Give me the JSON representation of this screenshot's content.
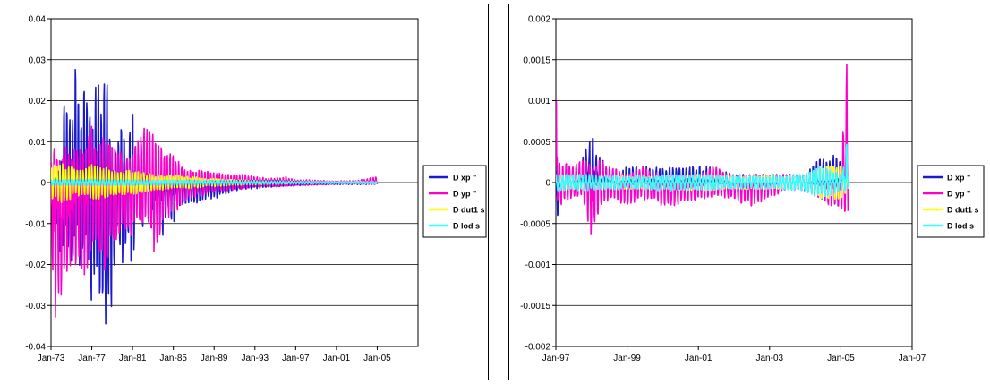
{
  "chart_data": [
    {
      "type": "line",
      "x_axis": "date",
      "x_ticks": [
        "Jan-73",
        "Jan-77",
        "Jan-81",
        "Jan-85",
        "Jan-89",
        "Jan-93",
        "Jan-97",
        "Jan-01",
        "Jan-05"
      ],
      "y_ticks": [
        "0.04",
        "0.03",
        "0.02",
        "0.01",
        "0",
        "-0.01",
        "-0.02",
        "-0.03",
        "-0.04"
      ],
      "ylim": [
        -0.04,
        0.04
      ],
      "xlim": [
        "1973-01-01",
        "2009-01-01"
      ],
      "grid": "horizontal",
      "legend_position": "right",
      "series": [
        {
          "name": "D xp \"",
          "color": "#1a1acc",
          "x": [
            "1973-06-01",
            "1974-01-01",
            "1974-06-01",
            "1975-01-01",
            "1975-06-01",
            "1976-01-01",
            "1976-06-01",
            "1977-01-01",
            "1977-06-01",
            "1978-01-01",
            "1978-06-01",
            "1979-01-01",
            "1979-06-01",
            "1980-01-01",
            "1980-06-01",
            "1981-01-01",
            "1981-06-01",
            "1982-01-01",
            "1982-06-01",
            "1983-01-01",
            "1983-06-01",
            "1984-01-01",
            "1984-06-01",
            "1985-01-01",
            "1985-06-01",
            "1986-01-01",
            "1987-01-01",
            "1988-01-01",
            "1989-01-01",
            "1990-01-01",
            "1991-01-01",
            "1993-01-01",
            "1995-01-01",
            "1997-01-01",
            "1999-01-01",
            "2001-01-01",
            "2003-01-01",
            "2005-01-01"
          ],
          "max": [
            0.001,
            0.005,
            0.029,
            0.012,
            0.029,
            0.013,
            0.03,
            0.012,
            0.03,
            0.016,
            0.032,
            0.003,
            0.009,
            0.016,
            0.007,
            0.018,
            0.004,
            0.015,
            0.01,
            0.001,
            0.004,
            -0.001,
            0.0,
            0.001,
            0.0015,
            0.001,
            0.001,
            0.0005,
            0.0005,
            0.0005,
            0.0005,
            0.0005,
            0.0005,
            0.0003,
            0.0002,
            0.0002,
            0.0002,
            0.0003
          ],
          "min": [
            -0.012,
            -0.019,
            -0.01,
            -0.026,
            -0.012,
            -0.026,
            -0.013,
            -0.032,
            -0.018,
            -0.04,
            -0.035,
            -0.032,
            -0.012,
            -0.022,
            -0.012,
            -0.024,
            -0.005,
            -0.012,
            -0.005,
            -0.018,
            -0.01,
            -0.013,
            -0.008,
            -0.011,
            -0.006,
            -0.006,
            -0.006,
            -0.004,
            -0.004,
            -0.003,
            -0.002,
            -0.0015,
            -0.001,
            -0.0008,
            -0.0006,
            -0.0005,
            -0.0005,
            -0.0005
          ]
        },
        {
          "name": "D yp \"",
          "color": "#ff00cc",
          "x": [
            "1973-01-01",
            "1973-06-01",
            "1974-01-01",
            "1974-06-01",
            "1975-01-01",
            "1975-06-01",
            "1976-01-01",
            "1976-06-01",
            "1977-01-01",
            "1977-06-01",
            "1978-01-01",
            "1978-06-01",
            "1979-01-01",
            "1979-06-01",
            "1980-01-01",
            "1980-06-01",
            "1981-01-01",
            "1981-06-01",
            "1982-01-01",
            "1982-06-01",
            "1983-01-01",
            "1983-06-01",
            "1984-01-01",
            "1985-01-01",
            "1986-01-01",
            "1987-01-01",
            "1988-01-01",
            "1989-01-01",
            "1990-01-01",
            "1991-01-01",
            "1992-01-01",
            "1993-01-01",
            "1995-01-01",
            "1996-01-01",
            "1997-01-01",
            "1999-01-01",
            "2001-01-01",
            "2003-01-01",
            "2005-01-01"
          ],
          "max": [
            0.006,
            0.009,
            0.006,
            0.009,
            0.007,
            0.009,
            0.008,
            0.009,
            0.014,
            0.007,
            0.012,
            0.014,
            0.009,
            0.009,
            0.007,
            0.006,
            0.007,
            0.011,
            0.014,
            0.015,
            0.012,
            0.01,
            0.008,
            0.007,
            0.004,
            0.003,
            0.003,
            0.0025,
            0.002,
            0.002,
            0.002,
            0.0015,
            0.001,
            0.0015,
            0.0008,
            0.0006,
            0.0004,
            0.0005,
            0.0015
          ],
          "min": [
            -0.013,
            -0.037,
            -0.029,
            -0.027,
            -0.022,
            -0.02,
            -0.022,
            -0.023,
            -0.016,
            -0.015,
            -0.024,
            -0.021,
            -0.014,
            -0.017,
            -0.012,
            -0.013,
            -0.013,
            -0.009,
            -0.013,
            -0.009,
            -0.018,
            -0.015,
            -0.01,
            -0.008,
            -0.005,
            -0.004,
            -0.003,
            -0.0025,
            -0.002,
            -0.002,
            -0.0015,
            -0.001,
            -0.001,
            -0.001,
            -0.0008,
            -0.0006,
            -0.0005,
            -0.0004,
            -0.0005
          ]
        },
        {
          "name": "D dut1 s",
          "color": "#ffff00",
          "x": [
            "1973-01-01",
            "1974-01-01",
            "1975-01-01",
            "1976-01-01",
            "1977-01-01",
            "1978-01-01",
            "1979-01-01",
            "1980-01-01",
            "1981-01-01",
            "1982-01-01",
            "1983-01-01",
            "1984-01-01",
            "1985-01-01",
            "1986-01-01",
            "1987-01-01",
            "1988-01-01",
            "1989-01-01",
            "1990-01-01",
            "1993-01-01",
            "1997-01-01",
            "2001-01-01",
            "2005-01-01"
          ],
          "max": [
            0.004,
            0.005,
            0.004,
            0.003,
            0.0045,
            0.004,
            0.003,
            0.003,
            0.003,
            0.0025,
            0.002,
            0.002,
            0.002,
            0.0015,
            0.0015,
            0.001,
            0.001,
            0.0008,
            0.0005,
            0.0003,
            0.0002,
            0.0002
          ],
          "min": [
            -0.004,
            -0.005,
            -0.004,
            -0.003,
            -0.004,
            -0.004,
            -0.003,
            -0.003,
            -0.003,
            -0.0025,
            -0.002,
            -0.002,
            -0.0015,
            -0.0015,
            -0.0015,
            -0.001,
            -0.001,
            -0.0008,
            -0.0005,
            -0.0003,
            -0.0002,
            -0.0002
          ]
        },
        {
          "name": "D lod s",
          "color": "#33ffff",
          "x": [
            "1973-01-01",
            "1977-01-01",
            "1981-01-01",
            "1985-01-01",
            "1989-01-01",
            "1993-01-01",
            "1997-01-01",
            "2001-01-01",
            "2005-01-01"
          ],
          "max": [
            0.0008,
            0.0008,
            0.0007,
            0.0006,
            0.0005,
            0.0004,
            0.0003,
            0.0002,
            0.0003
          ],
          "min": [
            -0.0008,
            -0.0008,
            -0.0007,
            -0.0006,
            -0.0005,
            -0.0004,
            -0.0003,
            -0.0002,
            -0.0003
          ]
        }
      ]
    },
    {
      "type": "line",
      "x_axis": "date",
      "x_ticks": [
        "Jan-97",
        "Jan-99",
        "Jan-01",
        "Jan-03",
        "Jan-05",
        "Jan-07"
      ],
      "y_ticks": [
        "0.002",
        "0.0015",
        "0.001",
        "0.0005",
        "0",
        "-0.0005",
        "-0.001",
        "-0.0015",
        "-0.002"
      ],
      "ylim": [
        -0.002,
        0.002
      ],
      "xlim": [
        "1997-01-01",
        "2007-01-01"
      ],
      "grid": "horizontal",
      "legend_position": "right",
      "series": [
        {
          "name": "D xp \"",
          "color": "#1a1acc",
          "x": [
            "1997-01-01",
            "1997-03-01",
            "1997-06-01",
            "1997-09-01",
            "1998-01-01",
            "1998-04-01",
            "1998-07-01",
            "1998-10-01",
            "1999-01-01",
            "1999-06-01",
            "2000-01-01",
            "2000-06-01",
            "2001-01-01",
            "2001-06-01",
            "2002-01-01",
            "2002-06-01",
            "2003-01-01",
            "2003-06-01",
            "2004-01-01",
            "2004-06-01",
            "2004-09-01",
            "2004-12-01",
            "2005-02-01",
            "2005-03-15"
          ],
          "max": [
            0.0002,
            0.0001,
            0.0002,
            0.0002,
            0.0006,
            0.0003,
            0.0002,
            0.0001,
            0.0002,
            0.0002,
            0.0002,
            0.0002,
            0.0002,
            0.0002,
            0.0001,
            0.0001,
            0.0001,
            0.0001,
            0.0001,
            0.0003,
            0.0003,
            0.0004,
            0.0003,
            0.0005
          ],
          "min": [
            -0.0006,
            -0.0001,
            -0.0002,
            -0.0001,
            -0.0001,
            -0.0001,
            -0.0001,
            -0.0001,
            -0.0001,
            -0.0001,
            -0.0001,
            -0.0001,
            -0.0001,
            -0.0001,
            -0.0001,
            -0.0001,
            -0.0001,
            -0.0001,
            -0.0001,
            -0.0002,
            -0.0002,
            -0.0003,
            -0.0002,
            -0.0001
          ]
        },
        {
          "name": "D yp \"",
          "color": "#ff00cc",
          "x": [
            "1997-01-01",
            "1997-02-01",
            "1997-06-01",
            "1997-10-01",
            "1998-01-01",
            "1998-04-01",
            "1998-08-01",
            "1999-01-01",
            "1999-06-01",
            "2000-01-01",
            "2000-06-01",
            "2001-01-01",
            "2001-06-01",
            "2002-01-01",
            "2002-06-01",
            "2003-01-01",
            "2003-06-01",
            "2004-01-01",
            "2004-06-01",
            "2004-10-01",
            "2005-01-01",
            "2005-02-20",
            "2005-03-15"
          ],
          "max": [
            0.0012,
            0.0003,
            0.0002,
            0.0003,
            0.0002,
            0.0003,
            0.0002,
            0.0001,
            0.0002,
            0.0001,
            0.0001,
            0.0001,
            0.0002,
            0.0001,
            0.0001,
            0.0001,
            0.0001,
            0.0001,
            0.0001,
            0.0001,
            0.0001,
            0.0015,
            0.002
          ],
          "min": [
            -0.0001,
            -0.0003,
            -0.0002,
            -0.0002,
            -0.0007,
            -0.0003,
            -0.0002,
            -0.0003,
            -0.0002,
            -0.0003,
            -0.0003,
            -0.0002,
            -0.0002,
            -0.0002,
            -0.0003,
            -0.0002,
            -0.0001,
            -0.0001,
            -0.0002,
            -0.0003,
            -0.0003,
            -0.0004,
            -0.0004
          ]
        },
        {
          "name": "D dut1 s",
          "color": "#ffff00",
          "x": [
            "1997-01-01",
            "1998-01-01",
            "1999-01-01",
            "2000-01-01",
            "2001-01-01",
            "2002-01-01",
            "2003-01-01",
            "2004-01-01",
            "2004-06-01",
            "2005-01-01",
            "2005-03-15"
          ],
          "max": [
            0.0001,
            8e-05,
            8e-05,
            8e-05,
            0.0001,
            8e-05,
            8e-05,
            8e-05,
            0.0002,
            0.0002,
            0.0001
          ],
          "min": [
            -0.0001,
            -8e-05,
            -8e-05,
            -8e-05,
            -0.0001,
            -8e-05,
            -8e-05,
            -8e-05,
            -0.0002,
            -0.0002,
            -0.0001
          ]
        },
        {
          "name": "D lod s",
          "color": "#33ffff",
          "x": [
            "1997-01-01",
            "1998-01-01",
            "1999-01-01",
            "2000-01-01",
            "2001-01-01",
            "2002-01-01",
            "2003-01-01",
            "2004-01-01",
            "2004-06-01",
            "2004-10-01",
            "2005-01-01",
            "2005-02-20",
            "2005-03-15"
          ],
          "max": [
            0.0001,
            0.0001,
            8e-05,
            0.0001,
            0.0001,
            8e-05,
            8e-05,
            0.0001,
            0.0002,
            0.00015,
            0.0001,
            0.0003,
            0.0009
          ],
          "min": [
            -0.0001,
            -0.0001,
            -8e-05,
            -0.0001,
            -0.0001,
            -8e-05,
            -8e-05,
            -0.0001,
            -0.0002,
            -0.00015,
            -0.0001,
            -0.0001,
            -0.0001
          ]
        }
      ]
    }
  ]
}
